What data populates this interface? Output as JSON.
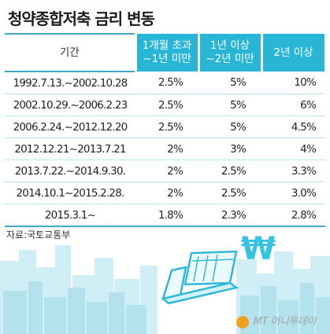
{
  "title": "청약종합저축 금리 변동",
  "headers": {
    "period": "기간",
    "col1_line1": "1개월 초과",
    "col1_line2": "~1년 미만",
    "col2_line1": "1년 이상",
    "col2_line2": "~2년 미만",
    "col3": "2년 이상"
  },
  "rows": [
    {
      "period": "1992.7.13.~2002.10.28",
      "r1": "2.5%",
      "r2": "5%",
      "r3": "10%"
    },
    {
      "period": "2002.10.29.~2006.2.23",
      "r1": "2.5%",
      "r2": "5%",
      "r3": "6%"
    },
    {
      "period": "2006.2.24.~2012.12.20",
      "r1": "2.5%",
      "r2": "5%",
      "r3": "4.5%"
    },
    {
      "period": "2012.12.21~2013.7.21",
      "r1": "2%",
      "r2": "3%",
      "r3": "4%"
    },
    {
      "period": "2013.7.22.~2014.9.30.",
      "r1": "2%",
      "r2": "2.5%",
      "r3": "3.3%"
    },
    {
      "period": "2014.10.1~2015.2.28.",
      "r1": "2%",
      "r2": "2.5%",
      "r3": "3.0%"
    },
    {
      "period": "2015.3.1~",
      "r1": "1.8%",
      "r2": "2.3%",
      "r3": "2.8%"
    }
  ],
  "source": "자료:국토교통부",
  "won_symbol": "₩",
  "logo": "MT 머니투데이",
  "colors": {
    "header_fill": "#29b6d6",
    "rule": "#41a7c8",
    "row_rule": "#b9e3ef",
    "skyline": "#bfe6ef",
    "won_sign": "#37c3e0"
  }
}
